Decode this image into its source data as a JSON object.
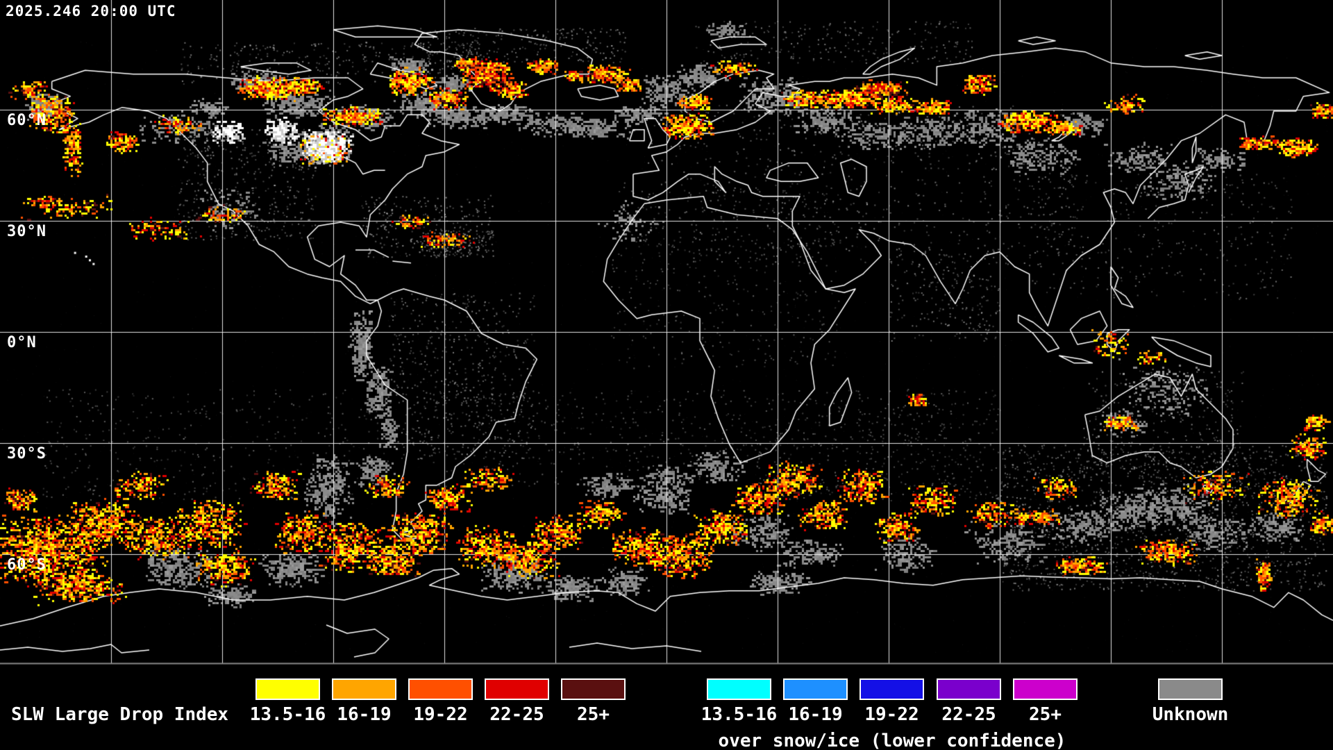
{
  "map": {
    "timestamp": "2025.246 20:00 UTC",
    "lat_labels": [
      "60°N",
      "30°N",
      "0°N",
      "30°S",
      "60°S"
    ]
  },
  "legend": {
    "title": "SLW Large Drop Index",
    "warm": [
      {
        "label": "13.5-16",
        "color": "#FFFF00"
      },
      {
        "label": "16-19",
        "color": "#FFA500"
      },
      {
        "label": "19-22",
        "color": "#FF5000"
      },
      {
        "label": "22-25",
        "color": "#E00000"
      },
      {
        "label": "25+",
        "color": "#5A1010"
      }
    ],
    "snow": [
      {
        "label": "13.5-16",
        "color": "#00FFFF"
      },
      {
        "label": "16-19",
        "color": "#1E90FF"
      },
      {
        "label": "19-22",
        "color": "#1410E6"
      },
      {
        "label": "22-25",
        "color": "#7A00CC"
      },
      {
        "label": "25+",
        "color": "#CC00CC"
      }
    ],
    "snow_note": "over snow/ice (lower confidence)",
    "unknown": {
      "label": "Unknown",
      "color": "#8A8A8A"
    }
  }
}
